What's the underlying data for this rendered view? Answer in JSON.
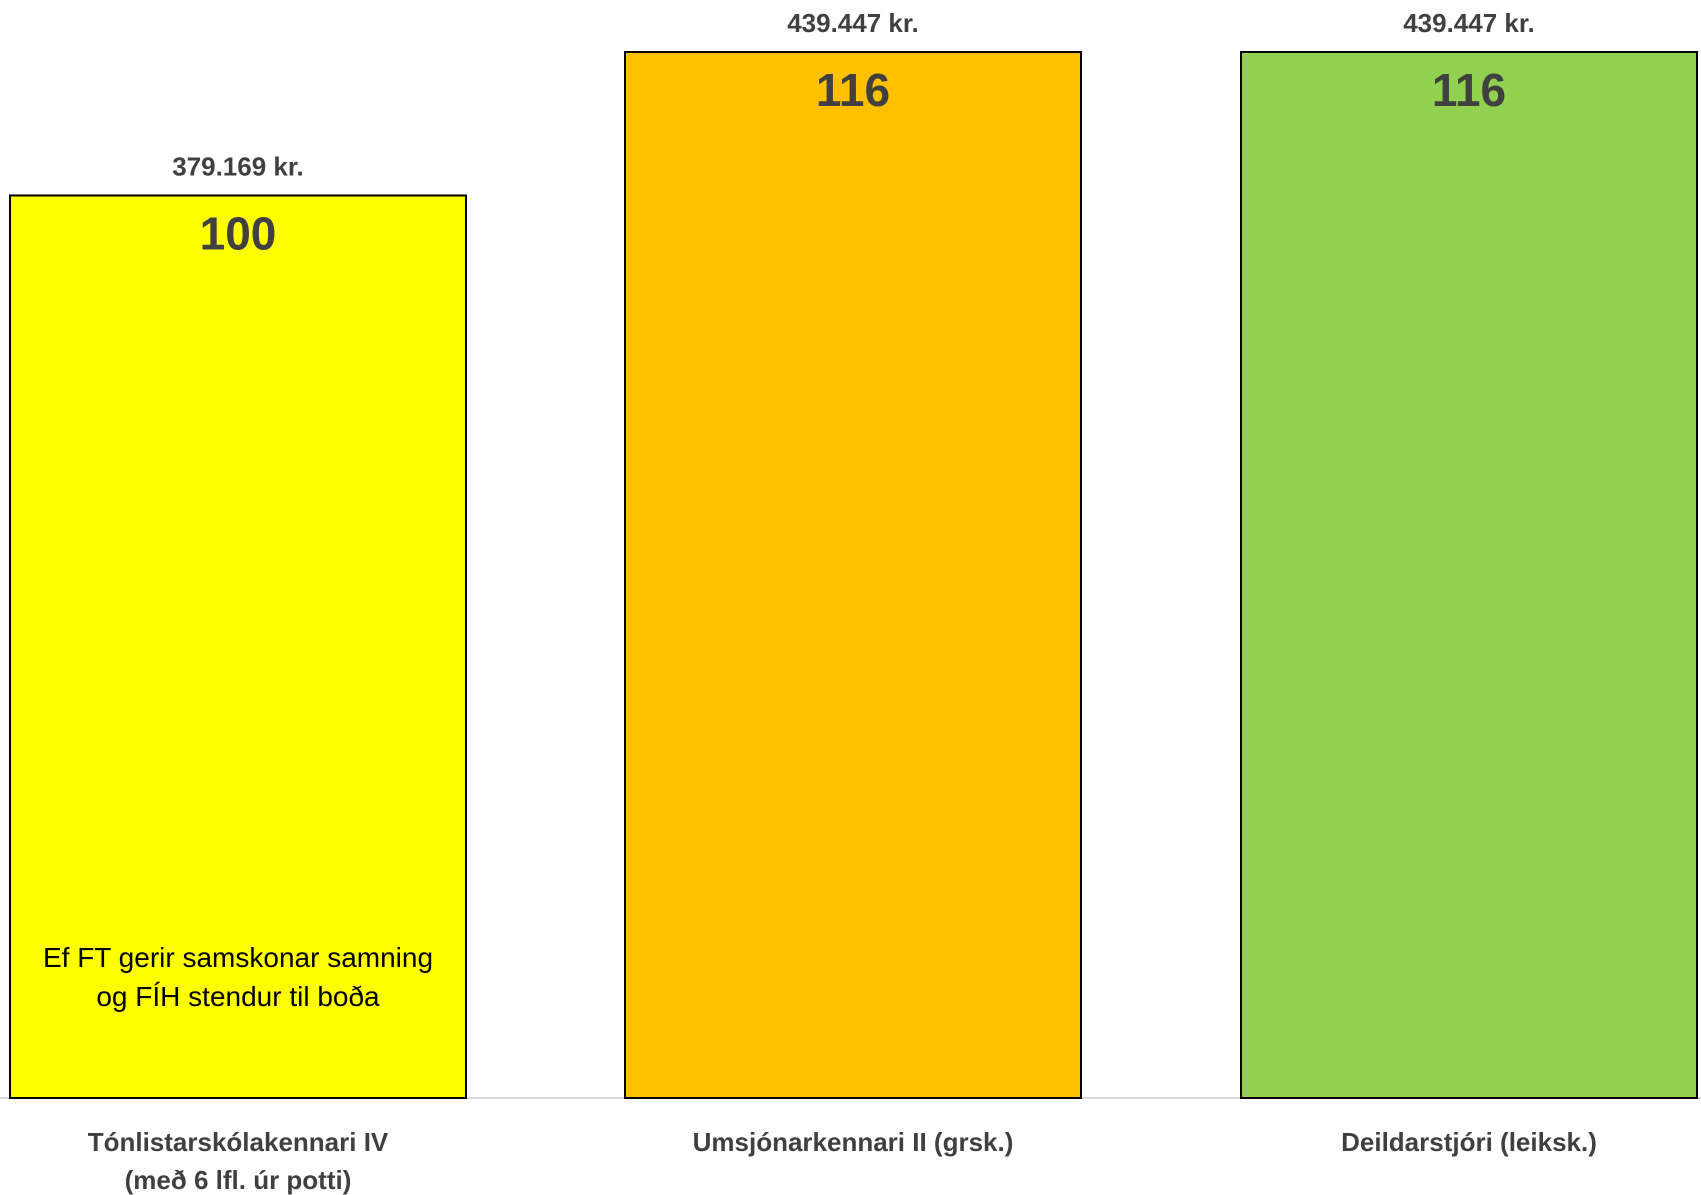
{
  "chart_data": {
    "type": "bar",
    "categories": [
      [
        "Tónlistarskólakennari IV",
        "(með 6 lfl. úr potti)"
      ],
      [
        "Umsjónarkennari II (grsk.)"
      ],
      [
        "Deildarstjóri (leiksk.)"
      ]
    ],
    "values": [
      379169,
      439447,
      439447
    ],
    "value_labels": [
      "379.169 kr.",
      "439.447 kr.",
      "439.447 kr."
    ],
    "index_labels": [
      "100",
      "116",
      "116"
    ],
    "colors": [
      "#FFFF00",
      "#FFC000",
      "#92D050"
    ],
    "annotation": {
      "bar": 0,
      "lines": [
        "Ef FT gerir samskonar samning",
        "og FÍH stendur til boða"
      ]
    },
    "ylim": [
      0,
      439447
    ],
    "grid": false,
    "legend": "none",
    "title": "",
    "xlabel": "",
    "ylabel": ""
  }
}
